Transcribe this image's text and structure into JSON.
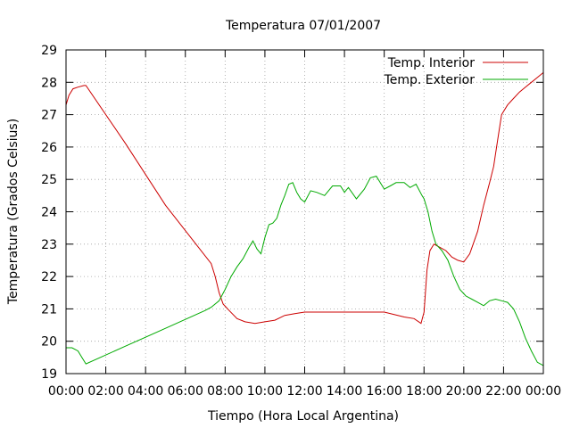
{
  "chart_data": {
    "type": "line",
    "title": "Temperatura 07/01/2007",
    "xlabel": "Tiempo (Hora Local Argentina)",
    "ylabel": "Temperatura (Grados Celsius)",
    "xlim": [
      0,
      24
    ],
    "ylim": [
      19,
      29
    ],
    "grid": true,
    "legend_position": "top-right",
    "x_tick_labels": [
      "00:00",
      "02:00",
      "04:00",
      "06:00",
      "08:00",
      "10:00",
      "12:00",
      "14:00",
      "16:00",
      "18:00",
      "20:00",
      "22:00",
      "00:00"
    ],
    "y_tick_labels": [
      "19",
      "20",
      "21",
      "22",
      "23",
      "24",
      "25",
      "26",
      "27",
      "28",
      "29"
    ],
    "series": [
      {
        "name": "Temp. Interior",
        "color": "#cc0000",
        "x": [
          0.0,
          0.15,
          0.35,
          0.6,
          0.9,
          1.0,
          3.0,
          5.0,
          7.3,
          7.5,
          7.7,
          7.9,
          8.2,
          8.6,
          9.0,
          9.5,
          10.0,
          10.5,
          11.0,
          11.5,
          12.0,
          13.0,
          14.0,
          15.0,
          16.0,
          17.0,
          17.5,
          17.85,
          18.0,
          18.15,
          18.3,
          18.5,
          18.8,
          19.1,
          19.4,
          19.7,
          20.0,
          20.3,
          20.7,
          21.0,
          21.3,
          21.5,
          21.7,
          21.9,
          22.2,
          22.5,
          22.8,
          23.1,
          23.4,
          23.7,
          24.0
        ],
        "y": [
          27.3,
          27.6,
          27.8,
          27.85,
          27.9,
          27.9,
          26.1,
          24.2,
          22.4,
          22.0,
          21.5,
          21.15,
          20.95,
          20.7,
          20.6,
          20.55,
          20.6,
          20.65,
          20.8,
          20.85,
          20.9,
          20.9,
          20.9,
          20.9,
          20.9,
          20.75,
          20.7,
          20.55,
          20.9,
          22.2,
          22.8,
          23.0,
          22.9,
          22.8,
          22.6,
          22.5,
          22.45,
          22.7,
          23.4,
          24.2,
          24.9,
          25.4,
          26.2,
          27.0,
          27.3,
          27.5,
          27.7,
          27.85,
          28.0,
          28.15,
          28.3
        ]
      },
      {
        "name": "Temp. Exterior",
        "color": "#00aa00",
        "x": [
          0.0,
          0.3,
          0.6,
          0.8,
          1.0,
          3.0,
          5.0,
          7.0,
          7.3,
          7.7,
          8.0,
          8.3,
          8.6,
          8.9,
          9.2,
          9.4,
          9.6,
          9.8,
          10.0,
          10.2,
          10.4,
          10.6,
          10.8,
          11.0,
          11.2,
          11.4,
          11.6,
          11.8,
          12.0,
          12.3,
          12.6,
          13.0,
          13.4,
          13.8,
          14.0,
          14.2,
          14.6,
          15.0,
          15.3,
          15.6,
          16.0,
          16.3,
          16.6,
          17.0,
          17.3,
          17.6,
          17.9,
          18.0,
          18.2,
          18.4,
          18.6,
          18.9,
          19.2,
          19.5,
          19.8,
          20.1,
          20.4,
          20.7,
          21.0,
          21.3,
          21.6,
          21.9,
          22.2,
          22.5,
          22.8,
          23.1,
          23.4,
          23.7,
          24.0
        ],
        "y": [
          19.8,
          19.8,
          19.7,
          19.5,
          19.3,
          19.85,
          20.4,
          20.95,
          21.05,
          21.25,
          21.6,
          22.0,
          22.3,
          22.55,
          22.9,
          23.1,
          22.85,
          22.7,
          23.2,
          23.6,
          23.65,
          23.8,
          24.2,
          24.5,
          24.85,
          24.9,
          24.6,
          24.4,
          24.3,
          24.65,
          24.6,
          24.5,
          24.8,
          24.8,
          24.6,
          24.75,
          24.4,
          24.7,
          25.05,
          25.1,
          24.7,
          24.8,
          24.9,
          24.9,
          24.75,
          24.85,
          24.5,
          24.4,
          24.0,
          23.4,
          23.0,
          22.8,
          22.5,
          22.0,
          21.6,
          21.4,
          21.3,
          21.2,
          21.1,
          21.25,
          21.3,
          21.25,
          21.2,
          21.0,
          20.6,
          20.1,
          19.7,
          19.35,
          19.25
        ]
      }
    ]
  }
}
